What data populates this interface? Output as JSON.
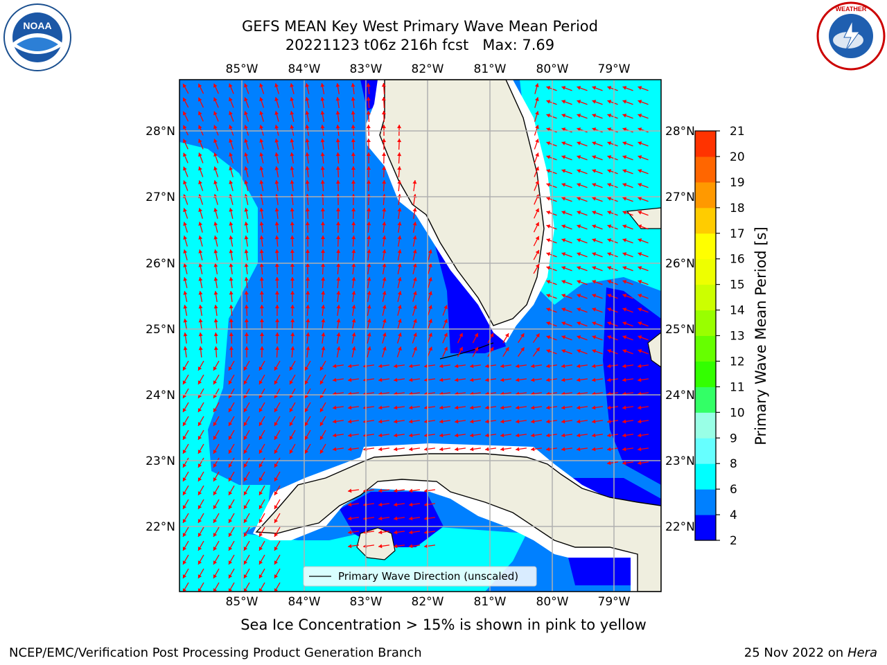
{
  "header": {
    "title_line1": "GEFS MEAN Key West Primary Wave Mean Period",
    "title_line2": "20221123 t06z 216h fcst   Max: 7.69"
  },
  "logos": {
    "left": {
      "name": "NOAA",
      "ring_text": "NATIONAL OCEANIC AND ATMOSPHERIC ADMINISTRATION · U.S. DEPARTMENT OF COMMERCE"
    },
    "right": {
      "name": "NATIONAL WEATHER SERVICE"
    }
  },
  "map": {
    "lon_labels": [
      "85°W",
      "84°W",
      "83°W",
      "82°W",
      "81°W",
      "80°W",
      "79°W"
    ],
    "lat_labels": [
      "28°N",
      "27°N",
      "26°N",
      "25°N",
      "24°N",
      "23°N",
      "22°N"
    ],
    "legend": "Primary Wave Direction (unscaled)",
    "arrow_color": "#ff0000",
    "land_color": "#efeedf"
  },
  "colorbar": {
    "label": "Primary Wave Mean Period [s]",
    "ticks": [
      "2",
      "4",
      "6",
      "8",
      "9",
      "10",
      "11",
      "12",
      "13",
      "14",
      "15",
      "16",
      "17",
      "18",
      "19",
      "20",
      "21"
    ],
    "colors": [
      "#0000ff",
      "#0080ff",
      "#00ffff",
      "#66ffff",
      "#99ffe6",
      "#33ff66",
      "#33ff00",
      "#66ff00",
      "#99ff00",
      "#ccff00",
      "#eeff00",
      "#ffff00",
      "#ffcc00",
      "#ff9900",
      "#ff6600",
      "#ff3300",
      "#ff0000"
    ]
  },
  "caption": "Sea Ice Concentration > 15% is shown in pink to yellow",
  "footer": {
    "left": "NCEP/EMC/Verification Post Processing Product Generation Branch",
    "right_date": "25 Nov 2022 on",
    "right_machine": "Hera"
  }
}
